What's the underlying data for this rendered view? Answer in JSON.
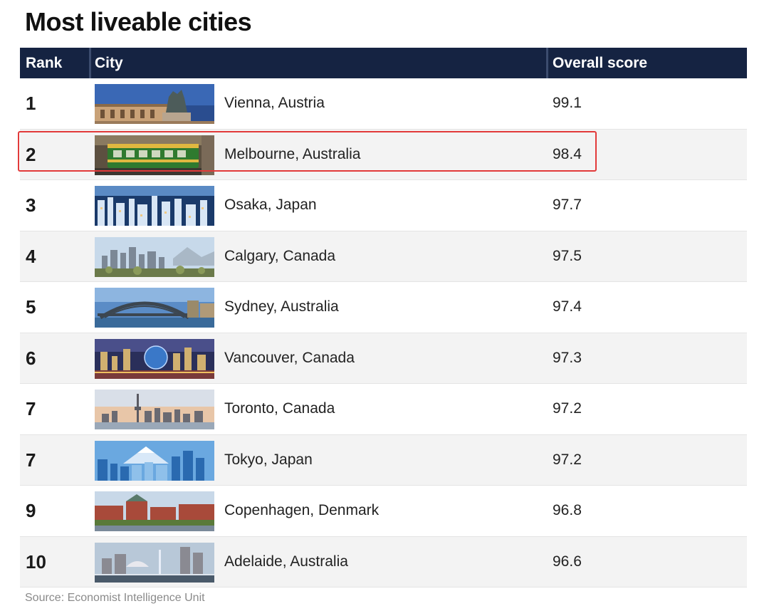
{
  "title": "Most liveable cities",
  "columns": {
    "rank": "Rank",
    "city": "City",
    "score": "Overall score"
  },
  "colors": {
    "header_bg": "#152342",
    "highlight": "#e23a3a",
    "alt_row": "#f3f3f3"
  },
  "highlighted_rank_index": 1,
  "chart_data": {
    "type": "table",
    "title": "Most liveable cities",
    "columns": [
      "Rank",
      "City",
      "Overall score"
    ],
    "rows": [
      {
        "rank": "1",
        "city": "Vienna, Austria",
        "score": "99.1",
        "image": "vienna-statue"
      },
      {
        "rank": "2",
        "city": "Melbourne, Australia",
        "score": "98.4",
        "image": "melbourne-tram"
      },
      {
        "rank": "3",
        "city": "Osaka, Japan",
        "score": "97.7",
        "image": "osaka-night"
      },
      {
        "rank": "4",
        "city": "Calgary, Canada",
        "score": "97.5",
        "image": "calgary-skyline"
      },
      {
        "rank": "5",
        "city": "Sydney, Australia",
        "score": "97.4",
        "image": "sydney-bridge"
      },
      {
        "rank": "6",
        "city": "Vancouver, Canada",
        "score": "97.3",
        "image": "vancouver-night"
      },
      {
        "rank": "7",
        "city": "Toronto, Canada",
        "score": "97.2",
        "image": "toronto-skyline"
      },
      {
        "rank": "7",
        "city": "Tokyo, Japan",
        "score": "97.2",
        "image": "tokyo-fuji"
      },
      {
        "rank": "9",
        "city": "Copenhagen, Denmark",
        "score": "96.8",
        "image": "copenhagen-buildings"
      },
      {
        "rank": "10",
        "city": "Adelaide, Australia",
        "score": "96.6",
        "image": "adelaide-fountain"
      }
    ]
  },
  "source": "Source: Economist Intelligence Unit"
}
